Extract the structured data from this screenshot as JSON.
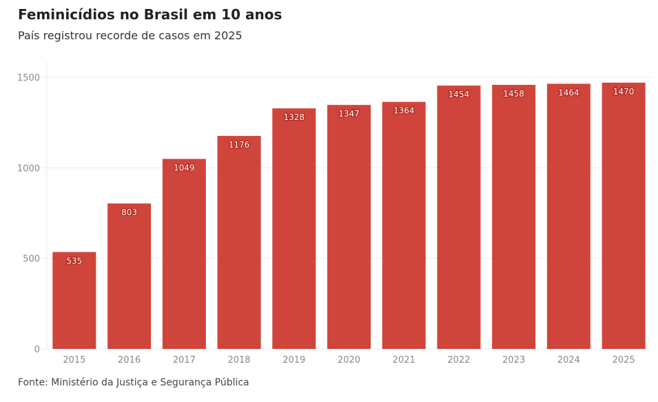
{
  "chart_data": {
    "type": "bar",
    "title": "Feminicídios no Brasil em 10 anos",
    "subtitle": "País registrou recorde de casos em 2025",
    "source": "Fonte: Ministério da Justiça e Segurança Pública",
    "categories": [
      "2015",
      "2016",
      "2017",
      "2018",
      "2019",
      "2020",
      "2021",
      "2022",
      "2023",
      "2024",
      "2025"
    ],
    "values": [
      535,
      803,
      1049,
      1176,
      1328,
      1347,
      1364,
      1454,
      1458,
      1464,
      1470
    ],
    "xlabel": "",
    "ylabel": "",
    "ylim": [
      0,
      1500
    ],
    "yticks": [
      0,
      500,
      1000,
      1500
    ],
    "grid": true,
    "bar_color": "#d0453b"
  }
}
